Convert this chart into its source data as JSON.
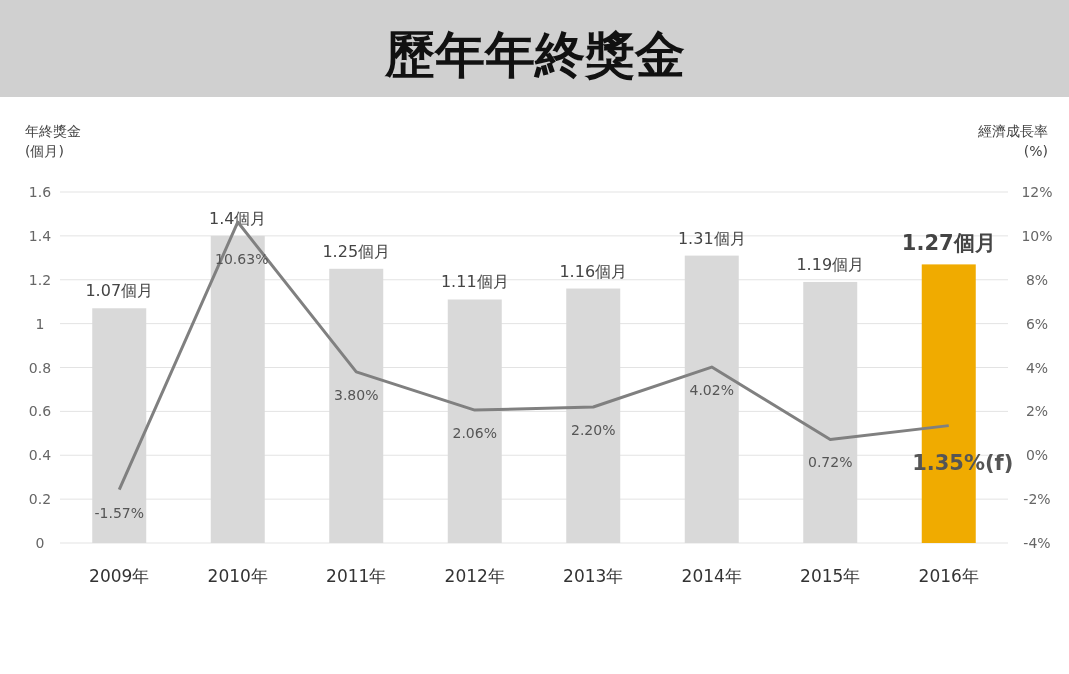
{
  "chart_data": {
    "type": "bar",
    "title": "歷年年終獎金",
    "ylabel": "年終獎金\n(個月)",
    "y2label": "經濟成長率\n(%)",
    "categories": [
      "2009年",
      "2010年",
      "2011年",
      "2012年",
      "2013年",
      "2014年",
      "2015年",
      "2016年"
    ],
    "series": [
      {
        "type": "bar",
        "colors": [
          "#d9d9d9",
          "#d9d9d9",
          "#d9d9d9",
          "#d9d9d9",
          "#d9d9d9",
          "#d9d9d9",
          "#d9d9d9",
          "#f0ab00"
        ],
        "values": [
          1.07,
          1.4,
          1.25,
          1.11,
          1.16,
          1.31,
          1.19,
          1.27
        ],
        "value_labels": [
          "1.07個月",
          "1.4個月",
          "1.25個月",
          "1.11個月",
          "1.16個月",
          "1.31個月",
          "1.19個月",
          "1.27個月"
        ]
      },
      {
        "type": "line",
        "axis": "y2",
        "color": "#808080",
        "values": [
          -1.57,
          10.63,
          3.8,
          2.06,
          2.2,
          4.02,
          0.72,
          1.35
        ],
        "value_labels": [
          "-1.57%",
          "10.63%",
          "3.80%",
          "2.06%",
          "2.20%",
          "4.02%",
          "0.72%",
          "1.35%(f)"
        ]
      }
    ],
    "ylim": [
      0,
      1.6
    ],
    "yticks": [
      0,
      0.2,
      0.4,
      0.6,
      0.8,
      1,
      1.2,
      1.4,
      1.6
    ],
    "y2lim": [
      -4,
      12
    ],
    "y2ticks": [
      {
        "value": -4,
        "label": "-4%"
      },
      {
        "value": -2,
        "label": "-2%"
      },
      {
        "value": 0,
        "label": "0%"
      },
      {
        "value": 2,
        "label": "2%"
      },
      {
        "value": 4,
        "label": "4%"
      },
      {
        "value": 6,
        "label": "6%"
      },
      {
        "value": 8,
        "label": "8%"
      },
      {
        "value": 10,
        "label": "10%"
      },
      {
        "value": 12,
        "label": "12%"
      }
    ],
    "grid": "y",
    "marker": "none",
    "line_style": "solid"
  }
}
